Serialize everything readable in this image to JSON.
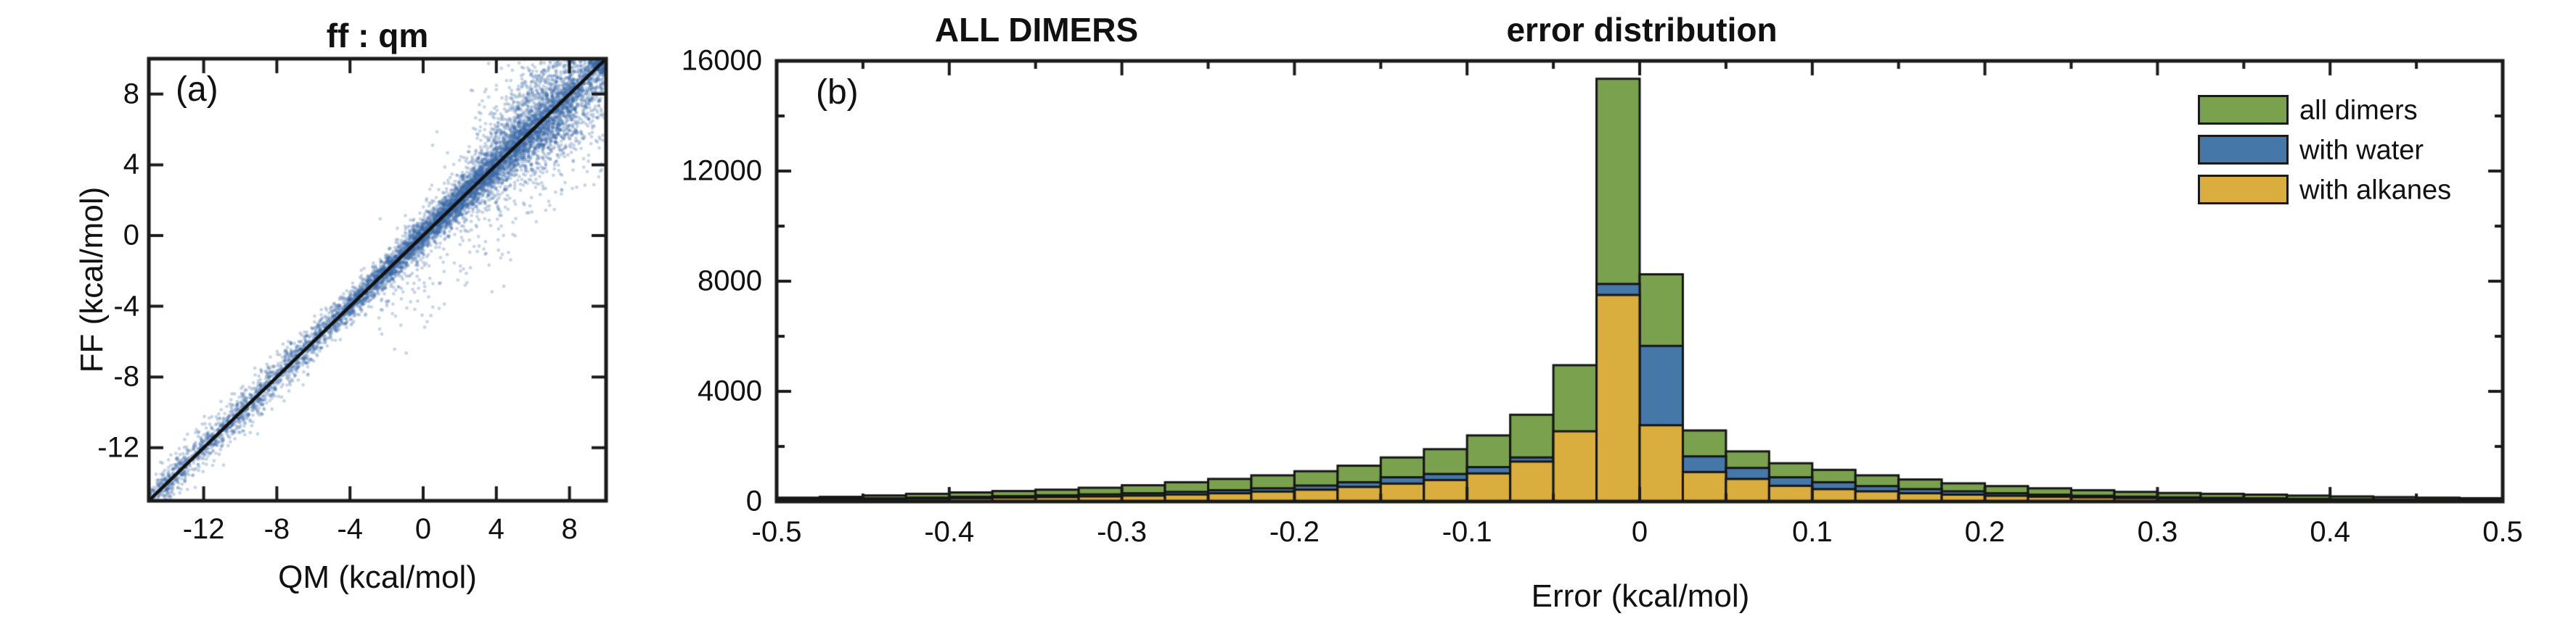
{
  "figure": {
    "background": "#ffffff",
    "axis_color": "#1a1a1a"
  },
  "chart_data": [
    {
      "type": "scatter",
      "panel_label": "(a)",
      "title": "ff : qm",
      "xlabel": "QM (kcal/mol)",
      "ylabel": "FF (kcal/mol)",
      "xlim": [
        -15,
        10
      ],
      "ylim": [
        -15,
        10
      ],
      "xticks": [
        -12,
        -8,
        -4,
        0,
        4,
        8
      ],
      "xtick_labels": [
        "-12",
        "-8",
        "-4",
        "0",
        "4",
        "8"
      ],
      "yticks": [
        8,
        4,
        0,
        -4,
        -8,
        -12
      ],
      "ytick_labels": [
        "8",
        "4",
        "0",
        "-4",
        "-8",
        "-12"
      ],
      "identity_line": true,
      "line_color": "#111111",
      "marker_color_rgb": [
        56,
        104,
        166
      ],
      "marker_alpha": 0.28,
      "marker_radius": 2.4,
      "points_spec": {
        "seed": 1337,
        "n_points": 9000,
        "components": [
          {
            "weight": 0.5,
            "t_dist": "normal",
            "t_mean": 0.5,
            "t_sd": 4.6,
            "t_clip": [
              -12.5,
              9.8
            ],
            "perp_sd": 0.33,
            "perp_bias": 0,
            "below_only": false
          },
          {
            "weight": 0.17,
            "t_dist": "normal",
            "t_mean": 6.2,
            "t_sd": 2.4,
            "t_clip": [
              -1.0,
              9.85
            ],
            "perp_sd": 0.85,
            "perp_bias": 0,
            "below_only": false
          },
          {
            "weight": 0.12,
            "t_dist": "normal",
            "t_mean": 7.3,
            "t_sd": 1.7,
            "t_clip": [
              1.5,
              9.85
            ],
            "perp_sd": 1.55,
            "perp_bias": 0.15,
            "below_only": false
          },
          {
            "weight": 0.07,
            "t_dist": "normal",
            "t_mean": 3.0,
            "t_sd": 2.0,
            "t_clip": [
              -2.0,
              8.0
            ],
            "perp_sd": 0.55,
            "perp_bias": 0,
            "below_only": false
          },
          {
            "weight": 0.07,
            "t_dist": "uniform",
            "t_range": [
              -15,
              -6.5
            ],
            "perp_sd": 0.5,
            "perp_bias": 0,
            "below_only": false
          },
          {
            "weight": 0.04,
            "t_dist": "uniform",
            "t_range": [
              -14.8,
              -9.0
            ],
            "perp_sd": 0.25,
            "perp_bias": 0,
            "below_only": false
          },
          {
            "weight": 0.03,
            "t_dist": "uniform",
            "t_range": [
              -4.0,
              7.5
            ],
            "perp_sd": 1.7,
            "perp_bias": -0.4,
            "below_only": true
          }
        ]
      }
    },
    {
      "type": "histogram",
      "panel_label": "(b)",
      "titles": [
        "ALL DIMERS",
        "error distribution"
      ],
      "xlabel": "Error (kcal/mol)",
      "xlim": [
        -0.5,
        0.5
      ],
      "ylim": [
        0,
        16000
      ],
      "xticks": [
        -0.5,
        -0.4,
        -0.3,
        -0.2,
        -0.1,
        0,
        0.1,
        0.2,
        0.3,
        0.4,
        0.5
      ],
      "xtick_labels": [
        "-0.5",
        "-0.4",
        "-0.3",
        "-0.2",
        "-0.1",
        "0",
        "0.1",
        "0.2",
        "0.3",
        "0.4",
        "0.5"
      ],
      "x_minor_ticks": [
        -0.45,
        -0.35,
        -0.25,
        -0.15,
        -0.05,
        0.05,
        0.15,
        0.25,
        0.35,
        0.45
      ],
      "yticks": [
        0,
        4000,
        8000,
        12000,
        16000
      ],
      "ytick_labels": [
        "0",
        "4000",
        "8000",
        "12000",
        "16000"
      ],
      "y_minor_ticks": [
        2000,
        6000,
        10000,
        14000
      ],
      "bin_start": -0.5,
      "bin_width": 0.025,
      "bar_edge_color": "#161616",
      "legend_position": "top-right",
      "series": [
        {
          "name": "all dimers",
          "color": "#7aa24e",
          "values": [
            140,
            170,
            220,
            280,
            330,
            380,
            430,
            500,
            590,
            700,
            820,
            950,
            1100,
            1300,
            1600,
            1900,
            2400,
            3150,
            4950,
            15350,
            8250,
            2580,
            1820,
            1390,
            1150,
            950,
            800,
            660,
            560,
            480,
            410,
            350,
            310,
            280,
            250,
            215,
            185,
            160,
            140,
            120
          ]
        },
        {
          "name": "with water",
          "color": "#4577a9",
          "values": [
            80,
            95,
            115,
            140,
            170,
            195,
            225,
            260,
            300,
            350,
            410,
            480,
            580,
            700,
            880,
            1000,
            1250,
            1600,
            2300,
            7900,
            5650,
            1640,
            1220,
            880,
            700,
            560,
            450,
            370,
            300,
            250,
            210,
            175,
            150,
            130,
            115,
            95,
            80,
            70,
            60,
            50
          ]
        },
        {
          "name": "with alkanes",
          "color": "#d9ae3e",
          "values": [
            55,
            65,
            80,
            100,
            120,
            140,
            160,
            185,
            215,
            255,
            300,
            360,
            430,
            530,
            650,
            780,
            1020,
            1450,
            2550,
            7500,
            2770,
            1070,
            820,
            570,
            450,
            370,
            300,
            250,
            210,
            175,
            150,
            125,
            105,
            92,
            80,
            68,
            58,
            50,
            44,
            38
          ]
        }
      ]
    }
  ]
}
